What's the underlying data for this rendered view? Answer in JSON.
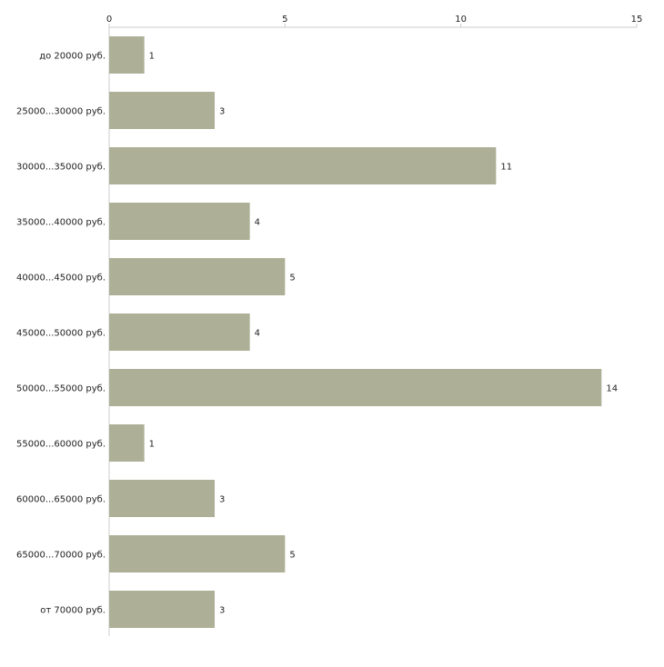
{
  "chart_data": {
    "type": "bar",
    "orientation": "horizontal",
    "title": "",
    "xlabel": "",
    "ylabel": "",
    "categories": [
      "до 20000 руб.",
      "25000...30000 руб.",
      "30000...35000 руб.",
      "35000...40000 руб.",
      "40000...45000 руб.",
      "45000...50000 руб.",
      "50000...55000 руб.",
      "55000...60000 руб.",
      "60000...65000 руб.",
      "65000...70000 руб.",
      "от 70000 руб."
    ],
    "values": [
      1,
      3,
      11,
      4,
      5,
      4,
      14,
      1,
      3,
      5,
      3
    ],
    "xlim": [
      0,
      15
    ],
    "xticks": [
      0,
      5,
      10,
      15
    ],
    "axis_position": "top",
    "grid": false,
    "data_labels": true,
    "bar_color": "#adb096",
    "axis_color": "#cccccc"
  }
}
